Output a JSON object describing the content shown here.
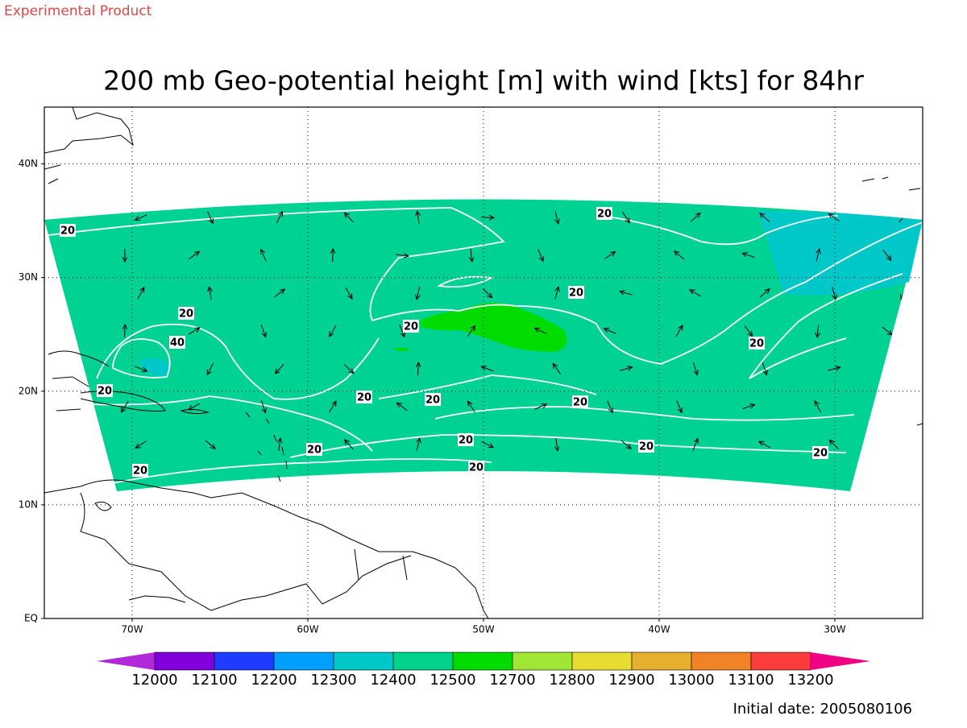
{
  "header": {
    "note": "Experimental Product",
    "title": "200 mb Geo-potential height [m] with wind [kts] for 84hr"
  },
  "map": {
    "lat_ticks": [
      {
        "value": 0,
        "label": "EQ"
      },
      {
        "value": 10,
        "label": "10N"
      },
      {
        "value": 20,
        "label": "20N"
      },
      {
        "value": 30,
        "label": "30N"
      },
      {
        "value": 40,
        "label": "40N"
      }
    ],
    "lon_ticks": [
      {
        "value": -70,
        "label": "70W"
      },
      {
        "value": -60,
        "label": "60W"
      },
      {
        "value": -50,
        "label": "50W"
      },
      {
        "value": -40,
        "label": "40W"
      },
      {
        "value": -30,
        "label": "30W"
      }
    ],
    "contour_labels": [
      "20",
      "20",
      "20",
      "20",
      "20",
      "20",
      "20",
      "20",
      "20",
      "20",
      "20",
      "20",
      "20",
      "20",
      "20",
      "20",
      "40"
    ]
  },
  "colorbar": {
    "levels": [
      12000,
      12100,
      12200,
      12300,
      12400,
      12500,
      12700,
      12800,
      12900,
      13000,
      13100,
      13200
    ],
    "colors": [
      "#b02ad8",
      "#8200dc",
      "#1e3cff",
      "#00a0ff",
      "#00c8c8",
      "#00d28c",
      "#00dc00",
      "#a0e632",
      "#e6dc32",
      "#e6af2d",
      "#f08228",
      "#fa3c3c",
      "#f00082"
    ]
  },
  "footer": {
    "initial_date": "Initial date: 2005080106"
  }
}
